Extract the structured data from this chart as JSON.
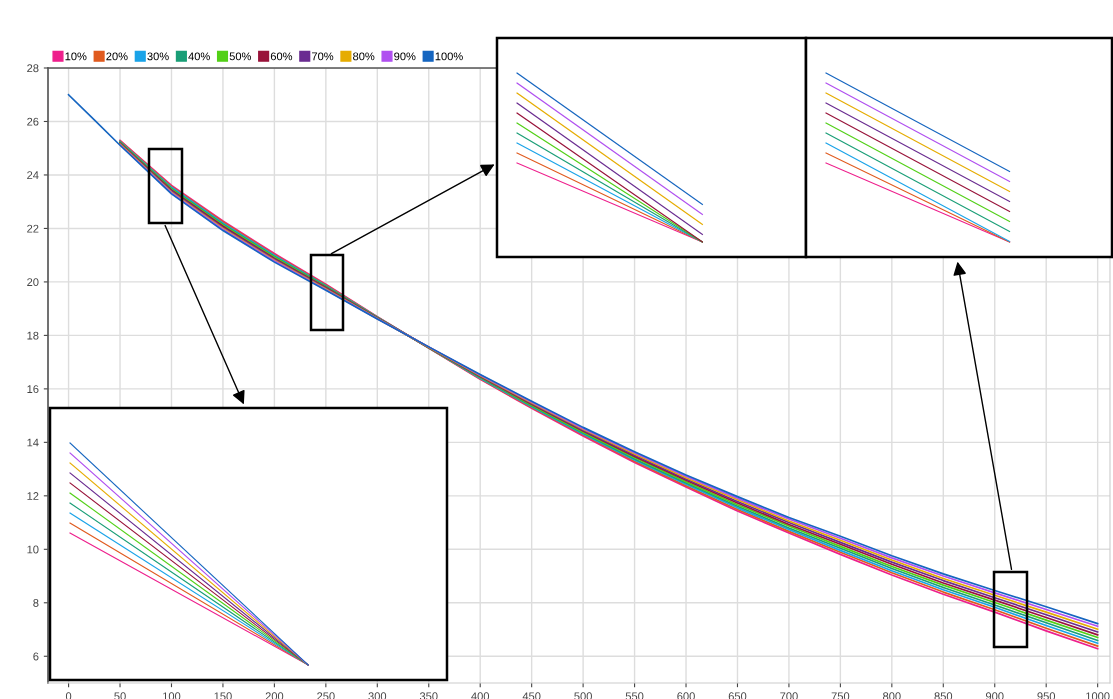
{
  "chart_data": {
    "type": "line",
    "x": [
      0,
      25,
      50,
      100,
      150,
      200,
      250,
      300,
      350,
      400,
      450,
      500,
      550,
      600,
      650,
      700,
      750,
      800,
      850,
      900,
      950,
      1000
    ],
    "series": [
      {
        "name": "10%",
        "color": "#ee1f8c",
        "values": [
          null,
          null,
          25.29,
          23.61,
          22.28,
          21.06,
          19.91,
          18.7,
          17.53,
          16.36,
          15.27,
          14.24,
          13.25,
          12.33,
          11.43,
          10.61,
          9.81,
          9.04,
          8.32,
          7.65,
          6.95,
          6.28
        ]
      },
      {
        "name": "20%",
        "color": "#e05a1e",
        "values": [
          null,
          null,
          25.27,
          23.57,
          22.24,
          21.02,
          19.89,
          18.69,
          17.53,
          16.38,
          15.3,
          14.28,
          13.29,
          12.38,
          11.49,
          10.67,
          9.89,
          9.12,
          8.4,
          7.74,
          7.05,
          6.38
        ]
      },
      {
        "name": "30%",
        "color": "#1aa3e8",
        "values": [
          null,
          null,
          25.25,
          23.54,
          22.2,
          20.99,
          19.86,
          18.68,
          17.54,
          16.4,
          15.33,
          14.31,
          13.34,
          12.43,
          11.55,
          10.74,
          9.96,
          9.2,
          8.49,
          7.83,
          7.15,
          6.49
        ]
      },
      {
        "name": "40%",
        "color": "#1a9e77",
        "values": [
          null,
          null,
          25.23,
          23.5,
          22.16,
          20.95,
          19.84,
          18.67,
          17.54,
          16.42,
          15.36,
          14.35,
          13.38,
          12.48,
          11.61,
          10.8,
          10.04,
          9.28,
          8.57,
          7.92,
          7.25,
          6.59
        ]
      },
      {
        "name": "50%",
        "color": "#52d017",
        "values": [
          null,
          null,
          25.21,
          23.47,
          22.12,
          20.92,
          19.81,
          18.66,
          17.55,
          16.44,
          15.39,
          14.38,
          13.43,
          12.53,
          11.67,
          10.87,
          10.11,
          9.36,
          8.66,
          8.01,
          7.35,
          6.7
        ]
      },
      {
        "name": "60%",
        "color": "#99133a",
        "values": [
          null,
          null,
          25.19,
          23.43,
          22.08,
          20.88,
          19.79,
          18.65,
          17.55,
          16.46,
          15.42,
          14.42,
          13.47,
          12.58,
          11.73,
          10.93,
          10.19,
          9.44,
          8.74,
          8.1,
          7.45,
          6.8
        ]
      },
      {
        "name": "70%",
        "color": "#6a2c91",
        "values": [
          null,
          null,
          25.17,
          23.4,
          22.04,
          20.85,
          19.76,
          18.64,
          17.56,
          16.48,
          15.45,
          14.45,
          13.52,
          12.63,
          11.79,
          11.0,
          10.26,
          9.52,
          8.83,
          8.19,
          7.55,
          6.91
        ]
      },
      {
        "name": "80%",
        "color": "#e6ac00",
        "values": [
          null,
          null,
          25.15,
          23.36,
          22.0,
          20.81,
          19.74,
          18.63,
          17.56,
          16.5,
          15.48,
          14.49,
          13.56,
          12.68,
          11.85,
          11.06,
          10.34,
          9.6,
          8.91,
          8.28,
          7.65,
          7.01
        ]
      },
      {
        "name": "90%",
        "color": "#b04ff0",
        "values": [
          null,
          null,
          25.13,
          23.33,
          21.96,
          20.78,
          19.71,
          18.62,
          17.57,
          16.52,
          15.51,
          14.52,
          13.61,
          12.73,
          11.91,
          11.13,
          10.41,
          9.68,
          9.0,
          8.37,
          7.75,
          7.12
        ]
      },
      {
        "name": "100%",
        "color": "#1565c0",
        "values": [
          27,
          26.06,
          25.11,
          23.29,
          21.92,
          20.74,
          19.69,
          18.61,
          17.57,
          16.54,
          15.54,
          14.56,
          13.65,
          12.78,
          11.97,
          11.19,
          10.49,
          9.76,
          9.08,
          8.46,
          7.85,
          7.22
        ]
      }
    ],
    "xlim": [
      -20,
      1012
    ],
    "xticks": [
      0,
      50,
      100,
      150,
      200,
      250,
      300,
      350,
      400,
      450,
      500,
      550,
      600,
      650,
      700,
      750,
      800,
      850,
      900,
      950,
      1000
    ],
    "ylim": [
      5,
      28
    ],
    "yticks": [
      6,
      8,
      10,
      12,
      14,
      16,
      18,
      20,
      22,
      24,
      26,
      28
    ],
    "grid": true,
    "legend": "top left",
    "marker": "none",
    "line_style": "solid"
  }
}
